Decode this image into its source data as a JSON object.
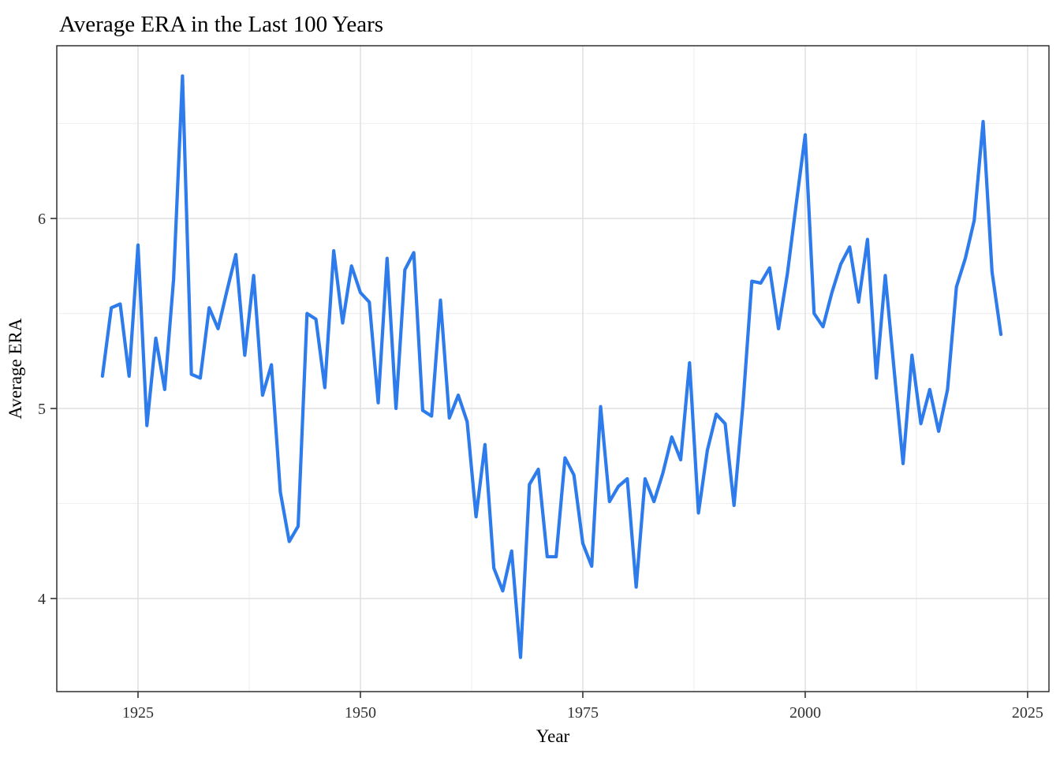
{
  "figure": {
    "kind": "ggplot-line-chart",
    "background": "#ffffff"
  },
  "chart_data": {
    "type": "line",
    "title": "Average ERA in the Last 100 Years",
    "xlabel": "Year",
    "ylabel": "Average ERA",
    "legend": "none",
    "grid": "on",
    "xlim": [
      1915.87,
      2027.4
    ],
    "ylim": [
      3.51,
      6.909
    ],
    "x_ticks": [
      1925,
      1950,
      1975,
      2000,
      2025
    ],
    "y_ticks": [
      4,
      5,
      6
    ],
    "x_minor": [
      1937.5,
      1962.5,
      1987.5,
      2012.5
    ],
    "y_minor": [
      4.5,
      5.5,
      6.5
    ],
    "x": [
      1921,
      1922,
      1923,
      1924,
      1925,
      1926,
      1927,
      1928,
      1929,
      1930,
      1931,
      1932,
      1933,
      1934,
      1935,
      1936,
      1937,
      1938,
      1939,
      1940,
      1941,
      1942,
      1943,
      1944,
      1945,
      1946,
      1947,
      1948,
      1949,
      1950,
      1951,
      1952,
      1953,
      1954,
      1955,
      1956,
      1957,
      1958,
      1959,
      1960,
      1961,
      1962,
      1963,
      1964,
      1965,
      1966,
      1967,
      1968,
      1969,
      1970,
      1971,
      1972,
      1973,
      1974,
      1975,
      1976,
      1977,
      1978,
      1979,
      1980,
      1981,
      1982,
      1983,
      1984,
      1985,
      1986,
      1987,
      1988,
      1989,
      1990,
      1991,
      1992,
      1993,
      1994,
      1995,
      1996,
      1997,
      1998,
      1999,
      2000,
      2001,
      2002,
      2003,
      2004,
      2005,
      2006,
      2007,
      2008,
      2009,
      2010,
      2011,
      2012,
      2013,
      2014,
      2015,
      2016,
      2017,
      2018,
      2019,
      2020,
      2021,
      2022
    ],
    "values": [
      5.17,
      5.53,
      5.55,
      5.17,
      5.86,
      4.91,
      5.37,
      5.1,
      5.68,
      6.75,
      5.18,
      5.16,
      5.53,
      5.42,
      5.62,
      5.81,
      5.28,
      5.7,
      5.07,
      5.23,
      4.56,
      4.3,
      4.38,
      5.5,
      5.47,
      5.11,
      5.83,
      5.45,
      5.75,
      5.61,
      5.56,
      5.03,
      5.79,
      5.0,
      5.73,
      5.82,
      4.99,
      4.96,
      5.57,
      4.95,
      5.07,
      4.93,
      4.43,
      4.81,
      4.16,
      4.04,
      4.25,
      3.69,
      4.6,
      4.68,
      4.22,
      4.22,
      4.74,
      4.65,
      4.29,
      4.17,
      5.01,
      4.51,
      4.59,
      4.63,
      4.06,
      4.63,
      4.51,
      4.66,
      4.85,
      4.73,
      5.24,
      4.45,
      4.78,
      4.97,
      4.92,
      4.49,
      5.02,
      5.67,
      5.66,
      5.74,
      5.42,
      5.71,
      6.08,
      6.44,
      5.5,
      5.43,
      5.61,
      5.76,
      5.85,
      5.56,
      5.89,
      5.16,
      5.7,
      5.2,
      4.71,
      5.28,
      4.92,
      5.1,
      4.88,
      5.1,
      5.64,
      5.79,
      5.99,
      6.51,
      5.72,
      5.39
    ],
    "line_color": "#2e7bec",
    "line_width": 4.2
  },
  "colors": {
    "panel_border": "#222222",
    "grid_major": "#e2e2e2",
    "grid_minor": "#f0f0f0",
    "tick_mark": "#333333",
    "tick_label": "#303030",
    "title": "#000000"
  }
}
